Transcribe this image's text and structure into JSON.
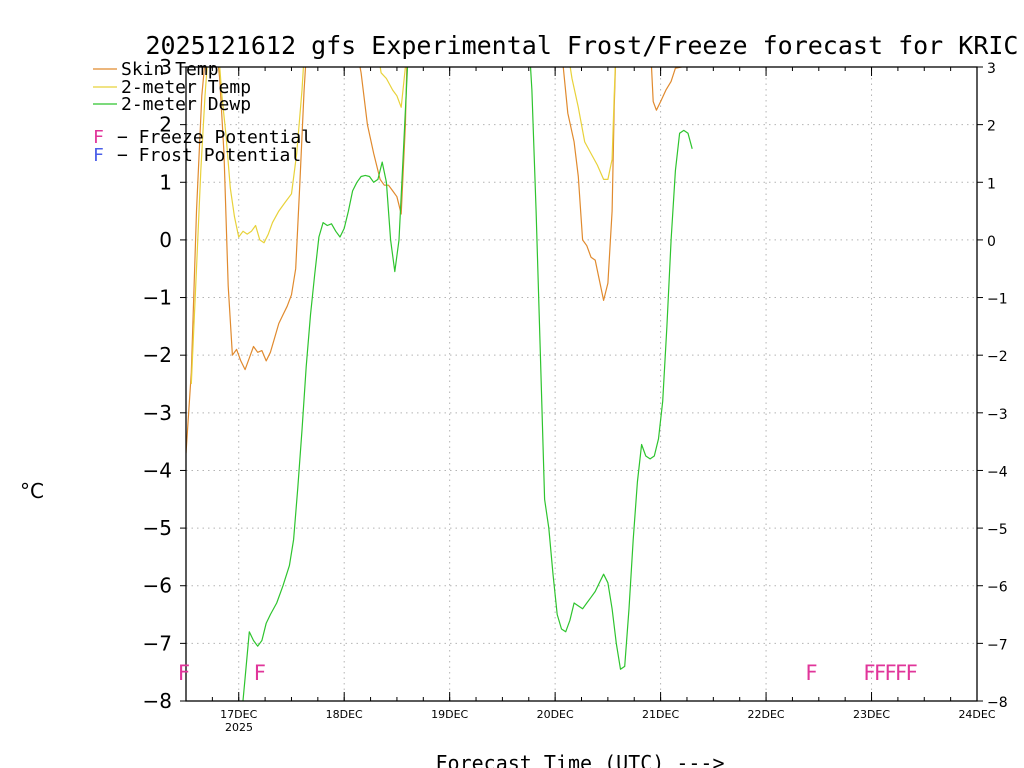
{
  "chart_data": {
    "type": "line",
    "title": "2025121612 gfs Experimental Frost/Freeze forecast for KRIC",
    "xlabel": "Forecast Time (UTC) --->",
    "ylabel": "°C",
    "ylim": [
      -8,
      3
    ],
    "xlim": [
      16.5,
      24.0
    ],
    "yticks": [
      -8,
      -7,
      -6,
      -5,
      -4,
      -3,
      -2,
      -1,
      0,
      1,
      2,
      3
    ],
    "ytick_labels": [
      "−8",
      "−7",
      "−6",
      "−5",
      "−4",
      "−3",
      "−2",
      "−1",
      "0",
      "1",
      "2",
      "3"
    ],
    "xticks": [
      17,
      18,
      19,
      20,
      21,
      22,
      23,
      24
    ],
    "xtick_labels": [
      "17DEC",
      "18DEC",
      "19DEC",
      "20DEC",
      "21DEC",
      "22DEC",
      "23DEC",
      "24DEC"
    ],
    "year_label": "2025",
    "grid": true,
    "legend": [
      {
        "label": "Skin Temp",
        "color": "#e08a2e"
      },
      {
        "label": "2-meter Temp",
        "color": "#e8d23a"
      },
      {
        "label": "2-meter Dewp",
        "color": "#2ec42e"
      }
    ],
    "potential_legend": [
      {
        "symbol": "F",
        "label": "− Freeze Potential",
        "color": "#e0359a"
      },
      {
        "symbol": "F",
        "label": "− Frost Potential",
        "color": "#4a5ee8"
      }
    ],
    "series": [
      {
        "name": "Skin Temp",
        "color": "#e08a2e",
        "points": [
          [
            16.5,
            -3.7
          ],
          [
            16.55,
            -2.3
          ],
          [
            16.6,
            0.5
          ],
          [
            16.65,
            2.5
          ],
          [
            16.7,
            3.5
          ],
          [
            16.78,
            3.5
          ],
          [
            16.82,
            2.8
          ],
          [
            16.86,
            1.5
          ],
          [
            16.9,
            -0.8
          ],
          [
            16.94,
            -2.0
          ],
          [
            16.98,
            -1.9
          ],
          [
            17.02,
            -2.1
          ],
          [
            17.06,
            -2.25
          ],
          [
            17.1,
            -2.05
          ],
          [
            17.14,
            -1.85
          ],
          [
            17.18,
            -1.95
          ],
          [
            17.22,
            -1.92
          ],
          [
            17.26,
            -2.1
          ],
          [
            17.3,
            -1.95
          ],
          [
            17.34,
            -1.7
          ],
          [
            17.38,
            -1.45
          ],
          [
            17.42,
            -1.3
          ],
          [
            17.46,
            -1.15
          ],
          [
            17.5,
            -0.95
          ],
          [
            17.54,
            -0.5
          ],
          [
            17.58,
            1.0
          ],
          [
            17.62,
            2.6
          ],
          [
            17.65,
            3.5
          ],
          [
            18.1,
            3.5
          ],
          [
            18.16,
            2.9
          ],
          [
            18.22,
            2.0
          ],
          [
            18.28,
            1.5
          ],
          [
            18.34,
            1.05
          ],
          [
            18.38,
            0.95
          ],
          [
            18.42,
            0.95
          ],
          [
            18.46,
            0.85
          ],
          [
            18.5,
            0.75
          ],
          [
            18.54,
            0.45
          ],
          [
            18.58,
            2.0
          ],
          [
            18.6,
            3.5
          ],
          [
            20.05,
            3.5
          ],
          [
            20.12,
            2.2
          ],
          [
            20.18,
            1.7
          ],
          [
            20.22,
            1.1
          ],
          [
            20.26,
            0.0
          ],
          [
            20.3,
            -0.1
          ],
          [
            20.34,
            -0.3
          ],
          [
            20.38,
            -0.35
          ],
          [
            20.42,
            -0.7
          ],
          [
            20.46,
            -1.05
          ],
          [
            20.5,
            -0.75
          ],
          [
            20.54,
            0.5
          ],
          [
            20.56,
            2.3
          ],
          [
            20.58,
            3.5
          ],
          [
            20.9,
            3.5
          ],
          [
            20.93,
            2.4
          ],
          [
            20.96,
            2.25
          ],
          [
            21.0,
            2.4
          ],
          [
            21.05,
            2.6
          ],
          [
            21.1,
            2.75
          ],
          [
            21.14,
            2.98
          ],
          [
            21.2,
            3.0
          ]
        ]
      },
      {
        "name": "2-meter Temp",
        "color": "#e8d23a",
        "points": [
          [
            16.55,
            -2.5
          ],
          [
            16.6,
            -0.5
          ],
          [
            16.64,
            1.2
          ],
          [
            16.68,
            2.5
          ],
          [
            16.72,
            3.5
          ],
          [
            16.8,
            3.5
          ],
          [
            16.84,
            2.5
          ],
          [
            16.88,
            1.8
          ],
          [
            16.92,
            0.9
          ],
          [
            16.96,
            0.4
          ],
          [
            17.0,
            0.05
          ],
          [
            17.04,
            0.15
          ],
          [
            17.08,
            0.1
          ],
          [
            17.12,
            0.15
          ],
          [
            17.16,
            0.25
          ],
          [
            17.2,
            0.0
          ],
          [
            17.24,
            -0.05
          ],
          [
            17.28,
            0.1
          ],
          [
            17.32,
            0.3
          ],
          [
            17.38,
            0.5
          ],
          [
            17.44,
            0.65
          ],
          [
            17.5,
            0.8
          ],
          [
            17.55,
            1.5
          ],
          [
            17.6,
            2.6
          ],
          [
            17.63,
            3.5
          ],
          [
            18.3,
            3.5
          ],
          [
            18.35,
            2.9
          ],
          [
            18.4,
            2.8
          ],
          [
            18.46,
            2.6
          ],
          [
            18.5,
            2.5
          ],
          [
            18.54,
            2.3
          ],
          [
            18.58,
            3.0
          ],
          [
            18.6,
            3.5
          ],
          [
            20.1,
            3.5
          ],
          [
            20.16,
            2.8
          ],
          [
            20.22,
            2.3
          ],
          [
            20.28,
            1.7
          ],
          [
            20.34,
            1.5
          ],
          [
            20.4,
            1.3
          ],
          [
            20.46,
            1.05
          ],
          [
            20.5,
            1.05
          ],
          [
            20.54,
            1.4
          ],
          [
            20.56,
            2.5
          ],
          [
            20.58,
            3.5
          ]
        ]
      },
      {
        "name": "2-meter Dewp",
        "color": "#2ec42e",
        "points": [
          [
            17.03,
            -8.2
          ],
          [
            17.06,
            -7.6
          ],
          [
            17.1,
            -6.8
          ],
          [
            17.14,
            -6.95
          ],
          [
            17.18,
            -7.05
          ],
          [
            17.22,
            -6.95
          ],
          [
            17.26,
            -6.65
          ],
          [
            17.3,
            -6.5
          ],
          [
            17.36,
            -6.3
          ],
          [
            17.42,
            -6.0
          ],
          [
            17.48,
            -5.65
          ],
          [
            17.52,
            -5.2
          ],
          [
            17.56,
            -4.3
          ],
          [
            17.6,
            -3.3
          ],
          [
            17.64,
            -2.2
          ],
          [
            17.68,
            -1.3
          ],
          [
            17.72,
            -0.6
          ],
          [
            17.76,
            0.05
          ],
          [
            17.8,
            0.3
          ],
          [
            17.84,
            0.25
          ],
          [
            17.88,
            0.28
          ],
          [
            17.92,
            0.15
          ],
          [
            17.96,
            0.05
          ],
          [
            18.0,
            0.2
          ],
          [
            18.04,
            0.5
          ],
          [
            18.08,
            0.85
          ],
          [
            18.12,
            1.0
          ],
          [
            18.16,
            1.1
          ],
          [
            18.2,
            1.12
          ],
          [
            18.24,
            1.1
          ],
          [
            18.28,
            1.0
          ],
          [
            18.32,
            1.05
          ],
          [
            18.36,
            1.35
          ],
          [
            18.4,
            1.0
          ],
          [
            18.44,
            0.0
          ],
          [
            18.48,
            -0.55
          ],
          [
            18.52,
            0.0
          ],
          [
            18.56,
            1.5
          ],
          [
            18.6,
            3.0
          ],
          [
            18.63,
            3.5
          ],
          [
            19.75,
            3.5
          ],
          [
            19.78,
            2.6
          ],
          [
            19.82,
            0.5
          ],
          [
            19.86,
            -2.0
          ],
          [
            19.9,
            -4.5
          ],
          [
            19.94,
            -5.0
          ],
          [
            19.98,
            -5.8
          ],
          [
            20.02,
            -6.5
          ],
          [
            20.06,
            -6.75
          ],
          [
            20.1,
            -6.8
          ],
          [
            20.14,
            -6.6
          ],
          [
            20.18,
            -6.3
          ],
          [
            20.22,
            -6.35
          ],
          [
            20.26,
            -6.4
          ],
          [
            20.3,
            -6.3
          ],
          [
            20.34,
            -6.2
          ],
          [
            20.38,
            -6.1
          ],
          [
            20.42,
            -5.95
          ],
          [
            20.46,
            -5.8
          ],
          [
            20.5,
            -5.95
          ],
          [
            20.54,
            -6.4
          ],
          [
            20.58,
            -7.0
          ],
          [
            20.62,
            -7.45
          ],
          [
            20.66,
            -7.4
          ],
          [
            20.7,
            -6.4
          ],
          [
            20.74,
            -5.2
          ],
          [
            20.78,
            -4.2
          ],
          [
            20.82,
            -3.55
          ],
          [
            20.86,
            -3.75
          ],
          [
            20.9,
            -3.8
          ],
          [
            20.94,
            -3.75
          ],
          [
            20.98,
            -3.45
          ],
          [
            21.02,
            -2.8
          ],
          [
            21.06,
            -1.5
          ],
          [
            21.1,
            0.0
          ],
          [
            21.14,
            1.2
          ],
          [
            21.18,
            1.85
          ],
          [
            21.22,
            1.9
          ],
          [
            21.26,
            1.85
          ],
          [
            21.3,
            1.58
          ]
        ]
      }
    ],
    "freeze_markers": [
      16.5,
      17.22,
      22.45,
      23.0,
      23.1,
      23.2,
      23.3,
      23.4
    ],
    "marker_symbol": "F",
    "marker_level": -7.5
  }
}
